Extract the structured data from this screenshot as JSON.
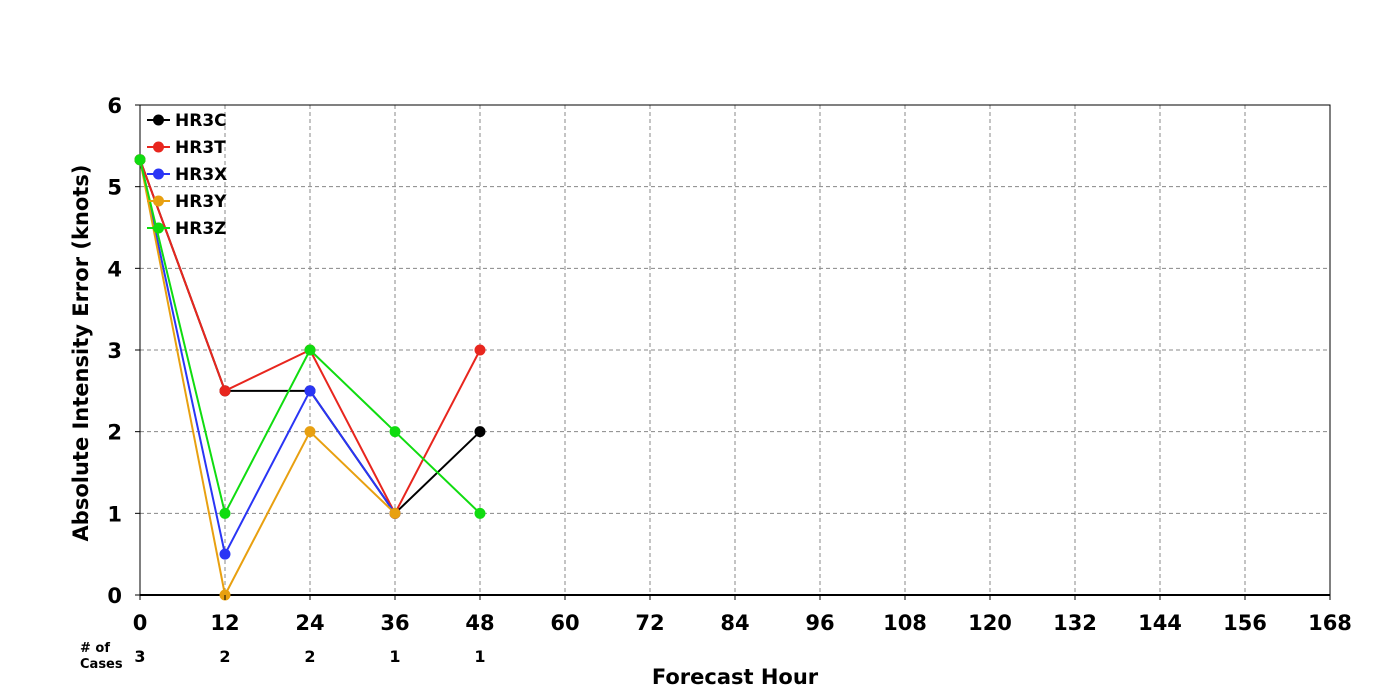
{
  "chart_data": {
    "type": "line",
    "title": "",
    "xlabel": "Forecast Hour",
    "ylabel": "Absolute Intensity Error (knots)",
    "xlim": [
      0,
      168
    ],
    "ylim": [
      0,
      6
    ],
    "xticks": [
      0,
      12,
      24,
      36,
      48,
      60,
      72,
      84,
      96,
      108,
      120,
      132,
      144,
      156,
      168
    ],
    "yticks": [
      0,
      1,
      2,
      3,
      4,
      5,
      6
    ],
    "grid": true,
    "legend_position": "top-left",
    "cases_label": [
      "# of",
      "Cases"
    ],
    "cases": [
      {
        "x": 0,
        "n": "3"
      },
      {
        "x": 12,
        "n": "2"
      },
      {
        "x": 24,
        "n": "2"
      },
      {
        "x": 36,
        "n": "1"
      },
      {
        "x": 48,
        "n": "1"
      }
    ],
    "series": [
      {
        "name": "HR3C",
        "color": "#000000",
        "points": [
          [
            0,
            5.33
          ],
          [
            12,
            2.5
          ],
          [
            24,
            2.5
          ],
          [
            36,
            1
          ],
          [
            48,
            2
          ]
        ]
      },
      {
        "name": "HR3T",
        "color": "#e8261e",
        "points": [
          [
            0,
            5.33
          ],
          [
            12,
            2.5
          ],
          [
            24,
            3
          ],
          [
            36,
            1
          ],
          [
            48,
            3
          ]
        ]
      },
      {
        "name": "HR3X",
        "color": "#2a35f5",
        "points": [
          [
            0,
            5.33
          ],
          [
            12,
            0.5
          ],
          [
            24,
            2.5
          ],
          [
            36,
            1
          ]
        ]
      },
      {
        "name": "HR3Y",
        "color": "#e8a010",
        "points": [
          [
            0,
            5.33
          ],
          [
            12,
            0
          ],
          [
            24,
            2
          ],
          [
            36,
            1
          ]
        ]
      },
      {
        "name": "HR3Z",
        "color": "#10dc10",
        "points": [
          [
            0,
            5.33
          ],
          [
            12,
            1
          ],
          [
            24,
            3
          ],
          [
            36,
            2
          ],
          [
            48,
            1
          ]
        ]
      }
    ]
  }
}
